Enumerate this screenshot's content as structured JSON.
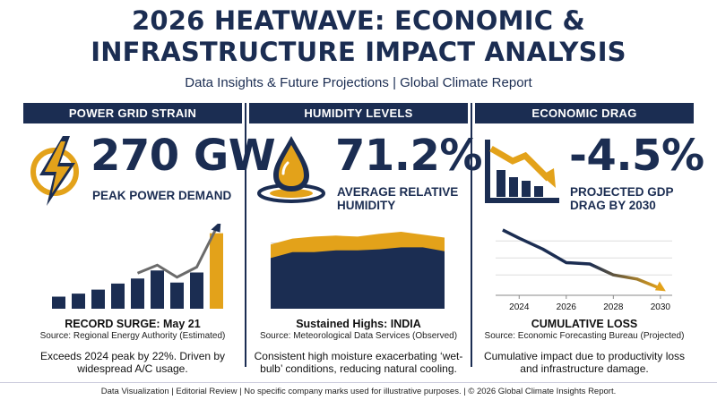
{
  "header": {
    "title_line1": "2026 HEATWAVE: ECONOMIC &",
    "title_line2": "INFRASTRUCTURE IMPACT ANALYSIS",
    "subtitle": "Data Insights & Future Projections | Global Climate Report"
  },
  "colors": {
    "navy": "#1b2d52",
    "gold": "#e3a21a",
    "gray": "#6b6b6b"
  },
  "panels": [
    {
      "header": "POWER GRID STRAIN",
      "icon": "lightning-bolt-icon",
      "metric": "270 GW",
      "metric_label": "PEAK POWER DEMAND",
      "caption_title": "RECORD SURGE: May 21",
      "caption_source": "Source: Regional Energy Authority (Estimated)",
      "caption_desc": "Exceeds 2024 peak by 22%. Driven by widespread A/C usage."
    },
    {
      "header": "HUMIDITY LEVELS",
      "icon": "water-drop-icon",
      "metric": "71.2%",
      "metric_label_line1": "AVERAGE RELATIVE",
      "metric_label_line2": "HUMIDITY",
      "caption_title": "Sustained Highs: INDIA",
      "caption_source": "Source: Meteorological Data Services (Observed)",
      "caption_desc": "Consistent high moisture exacerbating ‘wet-bulb’ conditions, reducing natural cooling."
    },
    {
      "header": "ECONOMIC DRAG",
      "icon": "declining-chart-icon",
      "metric": "-4.5%",
      "metric_label_line1": "PROJECTED GDP",
      "metric_label_line2": "DRAG BY 2030",
      "caption_title": "CUMULATIVE LOSS",
      "caption_source": "Source: Economic Forecasting Bureau (Projected)",
      "caption_desc": "Cumulative impact due to productivity loss and infrastructure damage."
    }
  ],
  "footer": "Data Visualization | Editorial Review | No specific company marks used for illustrative purposes. | © 2026 Global Climate Insights Report.",
  "chart_data": [
    {
      "type": "bar",
      "title": "",
      "categories": [
        "1",
        "2",
        "3",
        "4",
        "5",
        "6",
        "7",
        "8",
        "9"
      ],
      "values": [
        12,
        15,
        19,
        25,
        30,
        38,
        26,
        36,
        75
      ],
      "highlight": [
        false,
        false,
        false,
        false,
        false,
        false,
        false,
        false,
        true
      ],
      "colors": [
        "#1b2d52",
        "#e3a21a"
      ],
      "trend_arrow": true,
      "grid": false,
      "ylim": [
        0,
        80
      ]
    },
    {
      "type": "area",
      "title": "",
      "x": [
        0,
        1,
        2,
        3,
        4,
        5,
        6,
        7,
        8
      ],
      "series": [
        {
          "values": [
            66,
            72,
            74,
            75,
            74,
            77,
            79,
            76,
            73
          ]
        },
        {
          "values": [
            52,
            58,
            58,
            60,
            60,
            61,
            63,
            63,
            59
          ]
        }
      ],
      "colors": [
        "#e3a21a",
        "#1b2d52"
      ],
      "ylim": [
        0,
        90
      ],
      "grid": true
    },
    {
      "type": "line",
      "title": "",
      "x": [
        2023.3,
        2024,
        2025,
        2026,
        2027,
        2028,
        2029,
        2030
      ],
      "tick_labels": [
        "2024",
        "2026",
        "2028",
        "2030"
      ],
      "values": [
        -0.2,
        -0.8,
        -1.6,
        -2.6,
        -2.7,
        -3.5,
        -3.8,
        -4.5
      ],
      "color_start": "#1b2d52",
      "color_end": "#e3a21a",
      "ylim": [
        -5,
        0
      ],
      "xlim": [
        2023,
        2030.5
      ],
      "grid": true
    }
  ]
}
